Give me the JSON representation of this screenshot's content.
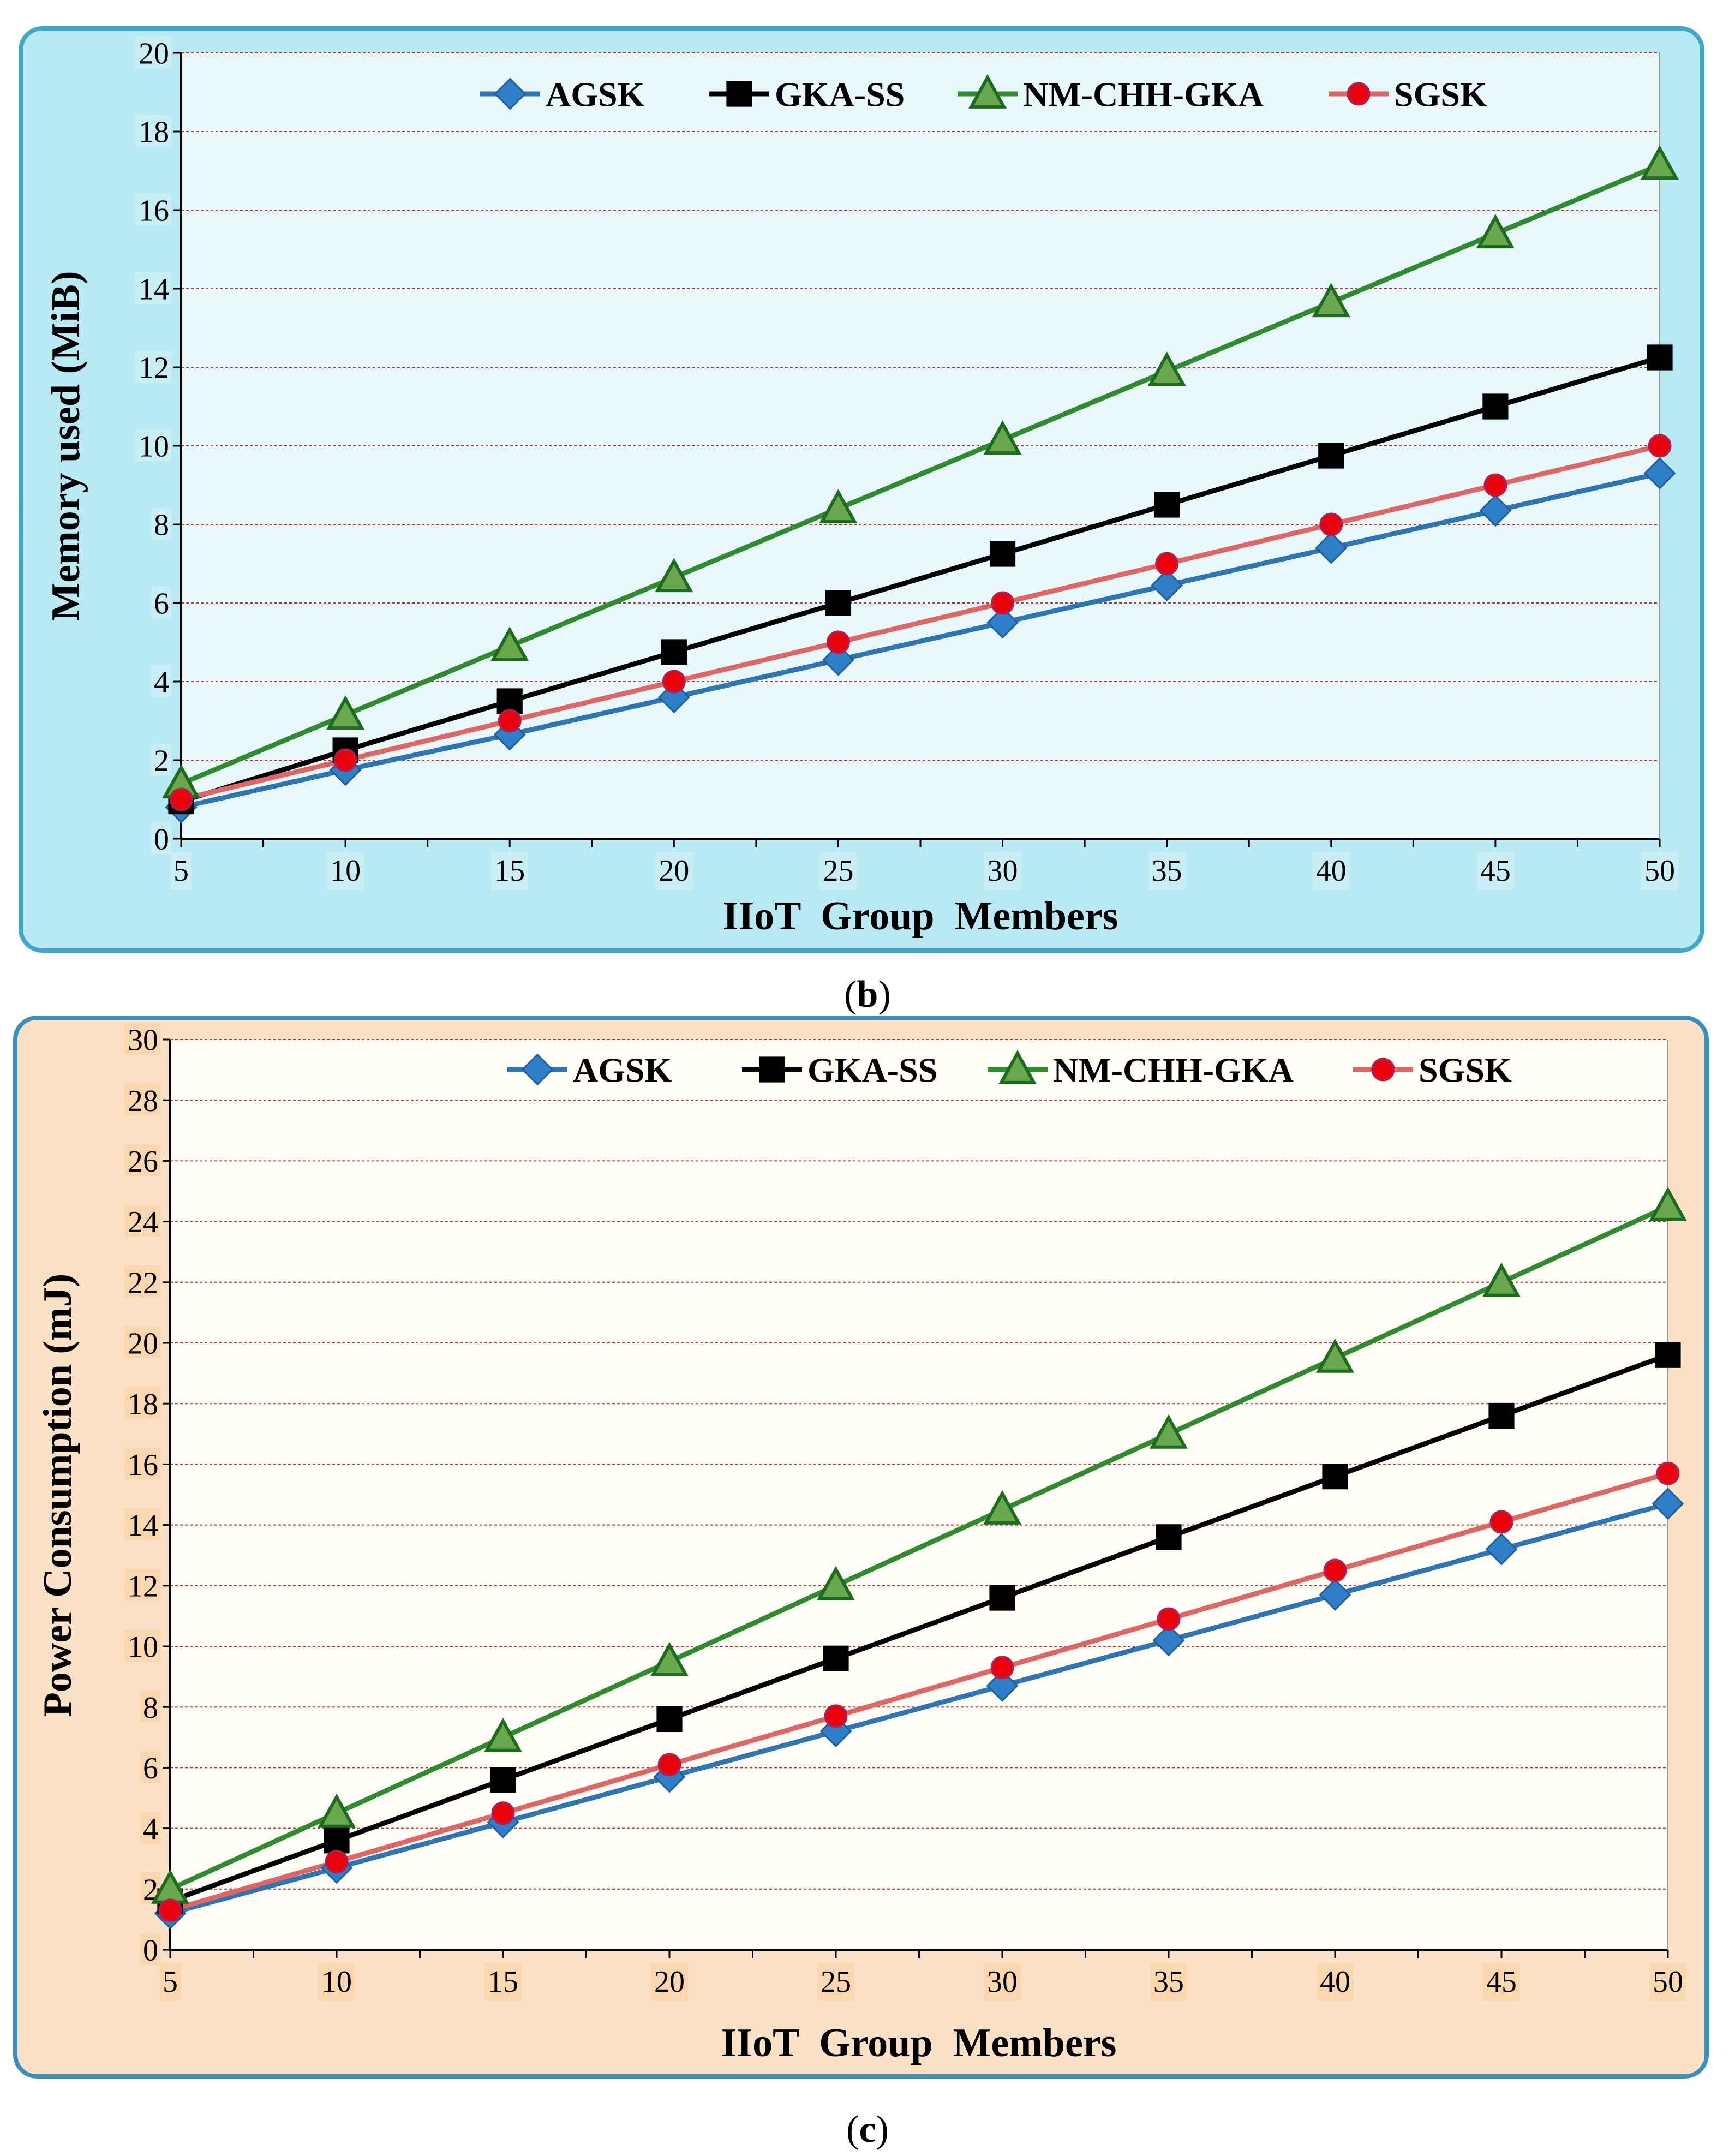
{
  "colors": {
    "AGSK": "#2e75b6",
    "AGSK_marker": "#2e7fc8",
    "GKA-SS": "#000000",
    "NM-CHH-GKA": "#2e8b2e",
    "NM-CHH-GKA_marker_fill": "#6aa84f",
    "SGSK": "#e06666",
    "SGSK_marker": "#e8000b",
    "panel_b_bg": "#b9e9f3",
    "panel_b_border": "#3fa7c9",
    "panel_b_plot_bg": "#e8f8fb",
    "panel_b_label_bg": "#c9eef5",
    "panel_c_bg": "#fbe2c6",
    "panel_c_border": "#3a8fbf",
    "panel_c_plot_bg": "#fffdf6",
    "panel_c_label_bg": "#fbd7b0",
    "gridline": "#b23a3a"
  },
  "chart_data": [
    {
      "id": "b",
      "type": "line",
      "caption_letter": "b",
      "title": "",
      "xlabel": "IIoT  Group  Members",
      "ylabel": "Memory  used  (MiB)",
      "x": [
        5,
        10,
        15,
        20,
        25,
        30,
        35,
        40,
        45,
        50
      ],
      "x_ticks": [
        "5",
        "10",
        "15",
        "20",
        "25",
        "30",
        "35",
        "40",
        "45",
        "50"
      ],
      "ylim": [
        0,
        20
      ],
      "y_ticks": [
        "0",
        "2",
        "4",
        "6",
        "8",
        "10",
        "12",
        "14",
        "16",
        "18",
        "20"
      ],
      "grid": true,
      "legend": [
        "AGSK",
        "GKA-SS",
        "NM-CHH-GKA",
        "SGSK"
      ],
      "legend_position": "top",
      "series": [
        {
          "name": "AGSK",
          "marker": "diamond",
          "values": [
            0.8,
            1.75,
            2.65,
            3.6,
            4.55,
            5.5,
            6.45,
            7.4,
            8.35,
            9.3
          ]
        },
        {
          "name": "GKA-SS",
          "marker": "square",
          "values": [
            0.95,
            2.25,
            3.5,
            4.75,
            6.0,
            7.25,
            8.5,
            9.75,
            11.0,
            12.25
          ]
        },
        {
          "name": "NM-CHH-GKA",
          "marker": "triangle",
          "values": [
            1.4,
            3.15,
            4.9,
            6.65,
            8.4,
            10.15,
            11.9,
            13.65,
            15.4,
            17.15
          ]
        },
        {
          "name": "SGSK",
          "marker": "circle",
          "values": [
            1.0,
            2.0,
            3.0,
            4.0,
            5.0,
            6.0,
            7.0,
            8.0,
            9.0,
            10.0
          ]
        }
      ]
    },
    {
      "id": "c",
      "type": "line",
      "caption_letter": "c",
      "title": "",
      "xlabel": "IIoT  Group  Members",
      "ylabel": "Power Consumption (mJ)",
      "x": [
        5,
        10,
        15,
        20,
        25,
        30,
        35,
        40,
        45,
        50
      ],
      "x_ticks": [
        "5",
        "10",
        "15",
        "20",
        "25",
        "30",
        "35",
        "40",
        "45",
        "50"
      ],
      "ylim": [
        0,
        30
      ],
      "y_ticks": [
        "0",
        "2",
        "4",
        "6",
        "8",
        "10",
        "12",
        "14",
        "16",
        "18",
        "20",
        "22",
        "24",
        "26",
        "28",
        "30"
      ],
      "grid": true,
      "legend": [
        "AGSK",
        "GKA-SS",
        "NM-CHH-GKA",
        "SGSK"
      ],
      "legend_position": "top",
      "series": [
        {
          "name": "AGSK",
          "marker": "diamond",
          "values": [
            1.2,
            2.7,
            4.2,
            5.7,
            7.2,
            8.7,
            10.2,
            11.7,
            13.2,
            14.7
          ]
        },
        {
          "name": "GKA-SS",
          "marker": "square",
          "values": [
            1.6,
            3.6,
            5.6,
            7.6,
            9.6,
            11.6,
            13.6,
            15.6,
            17.6,
            19.6
          ]
        },
        {
          "name": "NM-CHH-GKA",
          "marker": "triangle",
          "values": [
            2.0,
            4.5,
            7.0,
            9.5,
            12.0,
            14.5,
            17.0,
            19.5,
            22.0,
            24.5
          ]
        },
        {
          "name": "SGSK",
          "marker": "circle",
          "values": [
            1.3,
            2.9,
            4.5,
            6.1,
            7.7,
            9.3,
            10.9,
            12.5,
            14.1,
            15.7
          ]
        }
      ]
    }
  ]
}
